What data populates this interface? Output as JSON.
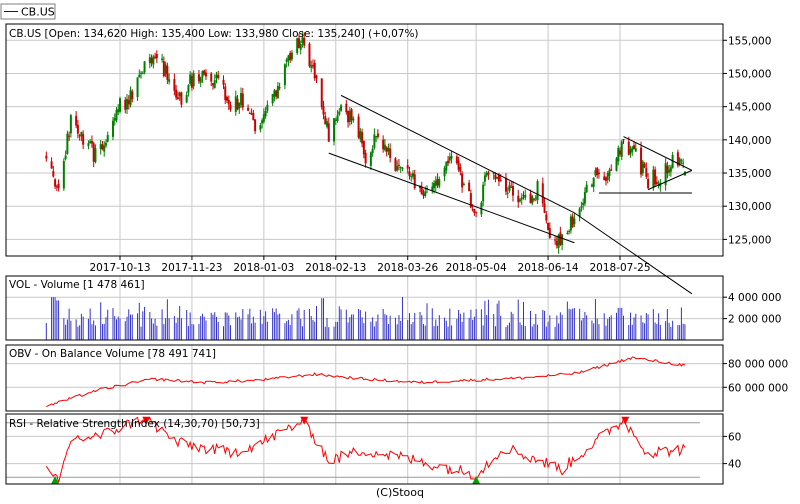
{
  "legend_tab": {
    "label": "CB.US",
    "color": "#0000ff"
  },
  "footer": {
    "credit": "(C)Stooq"
  },
  "colors": {
    "up": "#008000",
    "down": "#cc0000",
    "volume": "#3333cc",
    "line": "#ff0000",
    "trend": "#000000",
    "grid": "#c8c8c8",
    "rsi_level": "#999999",
    "marker_sell": "#ff0000",
    "marker_buy": "#00a000"
  },
  "chart_data": [
    {
      "type": "candlestick",
      "title": "CB.US [Open: 134,620  High: 135,400  Low: 133,980  Close: 135,240] (+0,07%)",
      "ylim": [
        122500,
        157000
      ],
      "y_ticks": [
        {
          "value": 125000,
          "label": "125,000"
        },
        {
          "value": 130000,
          "label": "130,000"
        },
        {
          "value": 135000,
          "label": "135,000"
        },
        {
          "value": 140000,
          "label": "140,000"
        },
        {
          "value": 145000,
          "label": "145,000"
        },
        {
          "value": 150000,
          "label": "150,000"
        },
        {
          "value": 155000,
          "label": "155,000"
        }
      ],
      "x_tick_labels": [
        "2017-10-13",
        "2017-11-23",
        "2018-01-03",
        "2018-02-13",
        "2018-03-26",
        "2018-05-04",
        "2018-06-14",
        "2018-07-25"
      ],
      "anchors": [
        [
          "2017-09-01",
          138000
        ],
        [
          "2017-09-08",
          131500
        ],
        [
          "2017-09-15",
          143000
        ],
        [
          "2017-09-22",
          140000
        ],
        [
          "2017-09-29",
          137500
        ],
        [
          "2017-10-06",
          140000
        ],
        [
          "2017-10-13",
          145000
        ],
        [
          "2017-10-20",
          146500
        ],
        [
          "2017-10-27",
          152000
        ],
        [
          "2017-11-03",
          153000
        ],
        [
          "2017-11-10",
          149000
        ],
        [
          "2017-11-17",
          146500
        ],
        [
          "2017-11-24",
          149500
        ],
        [
          "2017-12-01",
          149000
        ],
        [
          "2017-12-08",
          149500
        ],
        [
          "2017-12-15",
          145000
        ],
        [
          "2017-12-22",
          146000
        ],
        [
          "2017-12-29",
          141500
        ],
        [
          "2018-01-05",
          144000
        ],
        [
          "2018-01-12",
          149000
        ],
        [
          "2018-01-19",
          153500
        ],
        [
          "2018-01-26",
          155000
        ],
        [
          "2018-02-02",
          148000
        ],
        [
          "2018-02-09",
          141000
        ],
        [
          "2018-02-16",
          144000
        ],
        [
          "2018-02-23",
          143500
        ],
        [
          "2018-03-02",
          137500
        ],
        [
          "2018-03-09",
          141500
        ],
        [
          "2018-03-16",
          137000
        ],
        [
          "2018-03-23",
          135000
        ],
        [
          "2018-03-30",
          133500
        ],
        [
          "2018-04-06",
          131500
        ],
        [
          "2018-04-13",
          134000
        ],
        [
          "2018-04-20",
          137000
        ],
        [
          "2018-04-27",
          133000
        ],
        [
          "2018-05-04",
          128500
        ],
        [
          "2018-05-11",
          136000
        ],
        [
          "2018-05-18",
          134500
        ],
        [
          "2018-05-25",
          132000
        ],
        [
          "2018-06-01",
          131000
        ],
        [
          "2018-06-08",
          132500
        ],
        [
          "2018-06-15",
          126500
        ],
        [
          "2018-06-22",
          124500
        ],
        [
          "2018-06-29",
          128500
        ],
        [
          "2018-07-06",
          133000
        ],
        [
          "2018-07-13",
          135000
        ],
        [
          "2018-07-20",
          134500
        ],
        [
          "2018-07-27",
          140000
        ],
        [
          "2018-08-03",
          137500
        ],
        [
          "2018-08-10",
          134000
        ],
        [
          "2018-08-17",
          134500
        ],
        [
          "2018-08-24",
          137000
        ],
        [
          "2018-08-31",
          135200
        ]
      ],
      "trend_lines": [
        {
          "from": [
            "2018-02-16",
            146700
          ],
          "to": [
            "2018-06-29",
            129000
          ]
        },
        {
          "from": [
            "2018-02-09",
            138000
          ],
          "to": [
            "2018-06-29",
            124500
          ]
        },
        {
          "from": [
            "2018-06-29",
            129000
          ],
          "to": [
            "2018-09-04",
            116800
          ]
        },
        {
          "from": [
            "2018-07-27",
            140500
          ],
          "to": [
            "2018-09-04",
            135400
          ]
        },
        {
          "from": [
            "2018-08-10",
            132500
          ],
          "to": [
            "2018-09-04",
            135400
          ]
        },
        {
          "from": [
            "2018-07-13",
            132000
          ],
          "to": [
            "2018-09-04",
            132000
          ]
        }
      ]
    },
    {
      "type": "bar",
      "title": "VOL - Volume [1 478 461]",
      "ylim": [
        0,
        5700000
      ],
      "y_ticks": [
        {
          "value": 2000000,
          "label": "2 000 000"
        },
        {
          "value": 4000000,
          "label": "4 000 000"
        }
      ],
      "base": 2100000,
      "variation": 900000,
      "spikes": [
        [
          "2017-09-05",
          4000000
        ],
        [
          "2017-09-08",
          3700000
        ],
        [
          "2018-02-05",
          3900000
        ],
        [
          "2018-07-25",
          3000000
        ]
      ]
    },
    {
      "type": "line",
      "title": "OBV - On Balance Volume [78 491 741]",
      "ylim": [
        40000000,
        94000000
      ],
      "y_ticks": [
        {
          "value": 60000000,
          "label": "60 000 000"
        },
        {
          "value": 80000000,
          "label": "80 000 000"
        }
      ],
      "anchors": [
        [
          "2017-09-01",
          44000000
        ],
        [
          "2017-10-01",
          58000000
        ],
        [
          "2017-11-01",
          67000000
        ],
        [
          "2017-12-01",
          64000000
        ],
        [
          "2018-01-01",
          66000000
        ],
        [
          "2018-02-01",
          71000000
        ],
        [
          "2018-03-01",
          67000000
        ],
        [
          "2018-04-01",
          64000000
        ],
        [
          "2018-05-01",
          66000000
        ],
        [
          "2018-06-01",
          68000000
        ],
        [
          "2018-07-01",
          72000000
        ],
        [
          "2018-08-01",
          85000000
        ],
        [
          "2018-08-31",
          78500000
        ]
      ]
    },
    {
      "type": "line",
      "title": "RSI - Relative Strength Index (14,30,70) [50,73]",
      "ylim": [
        25,
        75
      ],
      "y_ticks": [
        {
          "value": 40,
          "label": "40"
        },
        {
          "value": 60,
          "label": "60"
        }
      ],
      "levels": [
        30,
        70
      ],
      "anchors": [
        [
          "2017-09-01",
          34
        ],
        [
          "2017-09-08",
          26
        ],
        [
          "2017-09-15",
          58
        ],
        [
          "2017-10-01",
          60
        ],
        [
          "2017-10-27",
          74
        ],
        [
          "2017-11-15",
          55
        ],
        [
          "2017-12-15",
          48
        ],
        [
          "2018-01-01",
          55
        ],
        [
          "2018-01-26",
          72
        ],
        [
          "2018-02-09",
          42
        ],
        [
          "2018-03-01",
          50
        ],
        [
          "2018-04-01",
          42
        ],
        [
          "2018-05-04",
          32
        ],
        [
          "2018-05-20",
          52
        ],
        [
          "2018-06-22",
          36
        ],
        [
          "2018-07-10",
          55
        ],
        [
          "2018-07-27",
          72
        ],
        [
          "2018-08-10",
          48
        ],
        [
          "2018-08-31",
          50.7
        ]
      ],
      "markers": [
        {
          "date": "2017-09-06",
          "kind": "buy"
        },
        {
          "date": "2017-10-28",
          "kind": "sell"
        },
        {
          "date": "2018-01-26",
          "kind": "sell"
        },
        {
          "date": "2018-05-04",
          "kind": "buy"
        },
        {
          "date": "2018-07-28",
          "kind": "sell"
        }
      ]
    }
  ]
}
